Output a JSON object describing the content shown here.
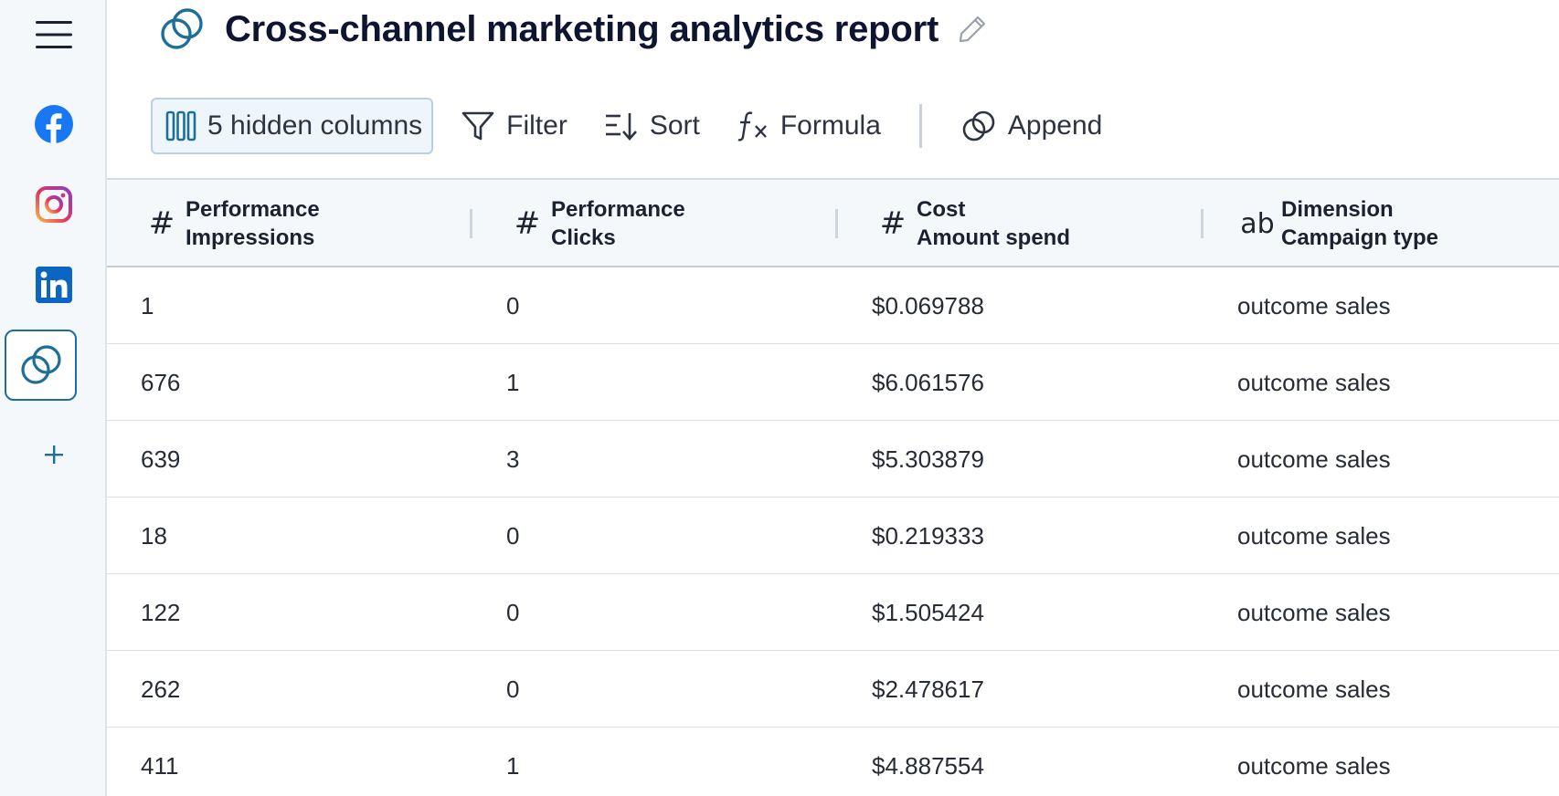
{
  "report": {
    "title": "Cross-channel marketing analytics report"
  },
  "sidebar": {
    "items": [
      {
        "icon": "menu-icon"
      },
      {
        "icon": "facebook-icon",
        "color": "#1877f2"
      },
      {
        "icon": "instagram-icon",
        "color": "#e1306c"
      },
      {
        "icon": "linkedin-icon",
        "color": "#0a66c2"
      },
      {
        "icon": "blend-icon",
        "color": "#1d6f9a",
        "active": true
      },
      {
        "icon": "plus-icon",
        "color": "#1d6f9a"
      }
    ]
  },
  "toolbar": {
    "hidden_columns_label": "5 hidden columns",
    "filter_label": "Filter",
    "sort_label": "Sort",
    "formula_label": "Formula",
    "append_label": "Append"
  },
  "table": {
    "columns": [
      {
        "type": "#",
        "group": "Performance",
        "name": "Impressions"
      },
      {
        "type": "#",
        "group": "Performance",
        "name": "Clicks"
      },
      {
        "type": "#",
        "group": "Cost",
        "name": "Amount spend"
      },
      {
        "type": "ab",
        "group": "Dimension",
        "name": "Campaign type"
      }
    ],
    "rows": [
      [
        "1",
        "0",
        "$0.069788",
        "outcome sales"
      ],
      [
        "676",
        "1",
        "$6.061576",
        "outcome sales"
      ],
      [
        "639",
        "3",
        "$5.303879",
        "outcome sales"
      ],
      [
        "18",
        "0",
        "$0.219333",
        "outcome sales"
      ],
      [
        "122",
        "0",
        "$1.505424",
        "outcome sales"
      ],
      [
        "262",
        "0",
        "$2.478617",
        "outcome sales"
      ],
      [
        "411",
        "1",
        "$4.887554",
        "outcome sales"
      ]
    ]
  },
  "colors": {
    "accent": "#1d6f9a",
    "title": "#0d1530",
    "header_bg": "#f5f8fa",
    "hidden_btn_bg": "#eef6fb"
  }
}
